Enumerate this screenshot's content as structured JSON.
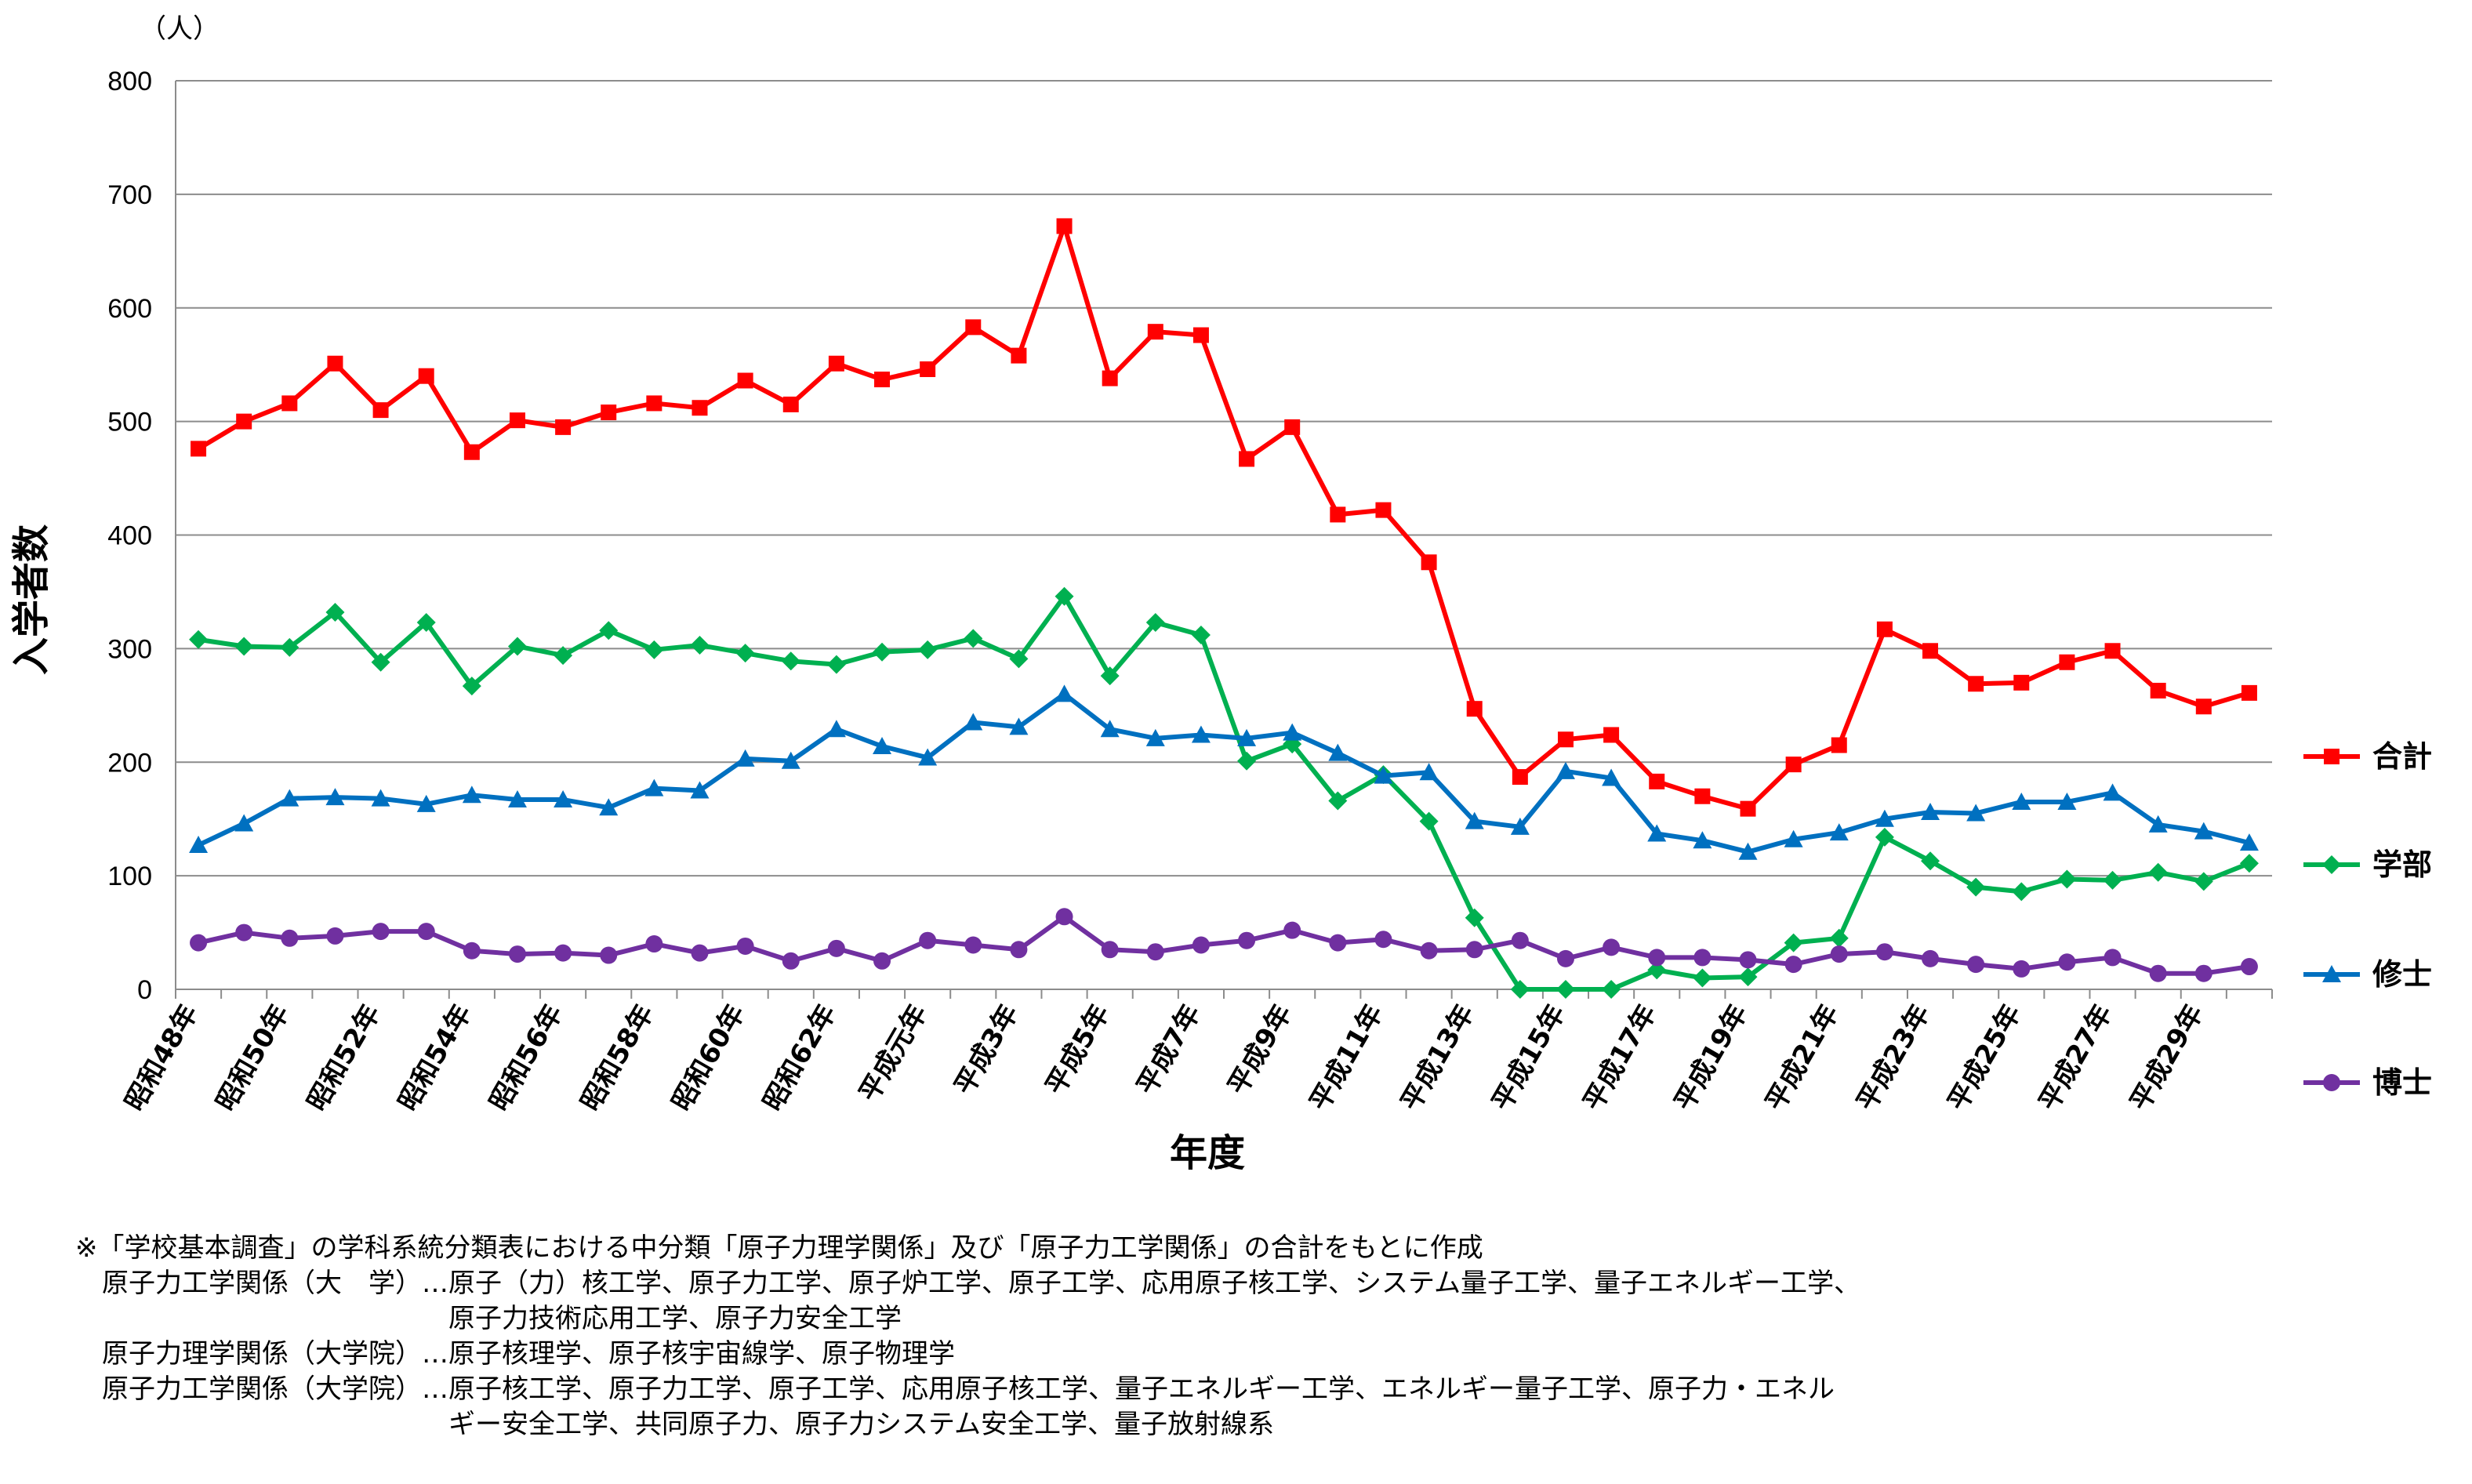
{
  "chart_data": {
    "type": "line",
    "unit_label": "（人）",
    "xlabel": "年度",
    "ylabel": "入学者数",
    "ylim": [
      0,
      800
    ],
    "y_ticks": [
      0,
      100,
      200,
      300,
      400,
      500,
      600,
      700,
      800
    ],
    "grid": "horizontal",
    "legend_position": "right",
    "categories": [
      "昭和48年",
      "昭和49年",
      "昭和50年",
      "昭和51年",
      "昭和52年",
      "昭和53年",
      "昭和54年",
      "昭和55年",
      "昭和56年",
      "昭和57年",
      "昭和58年",
      "昭和59年",
      "昭和60年",
      "昭和61年",
      "昭和62年",
      "昭和63年",
      "平成元年",
      "平成2年",
      "平成3年",
      "平成4年",
      "平成5年",
      "平成6年",
      "平成7年",
      "平成8年",
      "平成9年",
      "平成10年",
      "平成11年",
      "平成12年",
      "平成13年",
      "平成14年",
      "平成15年",
      "平成16年",
      "平成17年",
      "平成18年",
      "平成19年",
      "平成20年",
      "平成21年",
      "平成22年",
      "平成23年",
      "平成24年",
      "平成25年",
      "平成26年",
      "平成27年",
      "平成28年",
      "平成29年",
      "平成30年"
    ],
    "x_tick_labels": [
      "昭和48年",
      "昭和50年",
      "昭和52年",
      "昭和54年",
      "昭和56年",
      "昭和58年",
      "昭和60年",
      "昭和62年",
      "平成元年",
      "平成3年",
      "平成5年",
      "平成7年",
      "平成9年",
      "平成11年",
      "平成13年",
      "平成15年",
      "平成17年",
      "平成19年",
      "平成21年",
      "平成23年",
      "平成25年",
      "平成27年",
      "平成29年"
    ],
    "series": [
      {
        "name": "合計",
        "color": "#ff0000",
        "marker": "square",
        "values": [
          476,
          500,
          516,
          551,
          510,
          540,
          473,
          501,
          495,
          508,
          516,
          512,
          536,
          515,
          551,
          537,
          546,
          583,
          558,
          672,
          538,
          579,
          576,
          467,
          495,
          418,
          422,
          376,
          247,
          187,
          220,
          224,
          183,
          170,
          159,
          198,
          215,
          317,
          298,
          269,
          270,
          288,
          298,
          263,
          249,
          261
        ]
      },
      {
        "name": "学部",
        "color": "#00b050",
        "marker": "diamond",
        "values": [
          308,
          302,
          301,
          332,
          288,
          323,
          267,
          302,
          294,
          316,
          299,
          303,
          296,
          289,
          286,
          297,
          299,
          309,
          291,
          346,
          276,
          323,
          312,
          201,
          216,
          166,
          189,
          148,
          63,
          0,
          0,
          0,
          17,
          10,
          11,
          41,
          45,
          134,
          113,
          90,
          86,
          97,
          96,
          103,
          95,
          111
        ]
      },
      {
        "name": "修士",
        "color": "#0070c0",
        "marker": "triangle",
        "values": [
          127,
          146,
          168,
          169,
          168,
          163,
          171,
          167,
          167,
          160,
          177,
          175,
          203,
          201,
          229,
          214,
          204,
          235,
          231,
          260,
          229,
          221,
          224,
          221,
          226,
          208,
          188,
          191,
          148,
          143,
          192,
          186,
          137,
          131,
          121,
          132,
          138,
          150,
          156,
          155,
          165,
          165,
          173,
          145,
          139,
          129
        ]
      },
      {
        "name": "博士",
        "color": "#7030a0",
        "marker": "circle",
        "values": [
          41,
          50,
          45,
          47,
          51,
          51,
          34,
          31,
          32,
          30,
          40,
          32,
          38,
          25,
          36,
          25,
          43,
          39,
          35,
          64,
          35,
          33,
          39,
          43,
          52,
          41,
          44,
          34,
          35,
          43,
          27,
          37,
          28,
          28,
          26,
          22,
          31,
          33,
          27,
          22,
          18,
          24,
          28,
          14,
          14,
          20
        ]
      }
    ]
  },
  "notes": [
    "※「学校基本調査」の学科系統分類表における中分類「原子力理学関係」及び「原子力工学関係」の合計をもとに作成",
    "　原子力工学関係（大　学）…原子（力）核工学、原子力工学、原子炉工学、原子工学、応用原子核工学、システム量子工学、量子エネルギー工学、",
    "　　　　　　　　　　　　　　原子力技術応用工学、原子力安全工学",
    "　原子力理学関係（大学院）…原子核理学、原子核宇宙線学、原子物理学",
    "　原子力工学関係（大学院）…原子核工学、原子力工学、原子工学、応用原子核工学、量子エネルギー工学、エネルギー量子工学、原子力・エネル",
    "　　　　　　　　　　　　　　ギー安全工学、共同原子力、原子力システム安全工学、量子放射線系"
  ]
}
